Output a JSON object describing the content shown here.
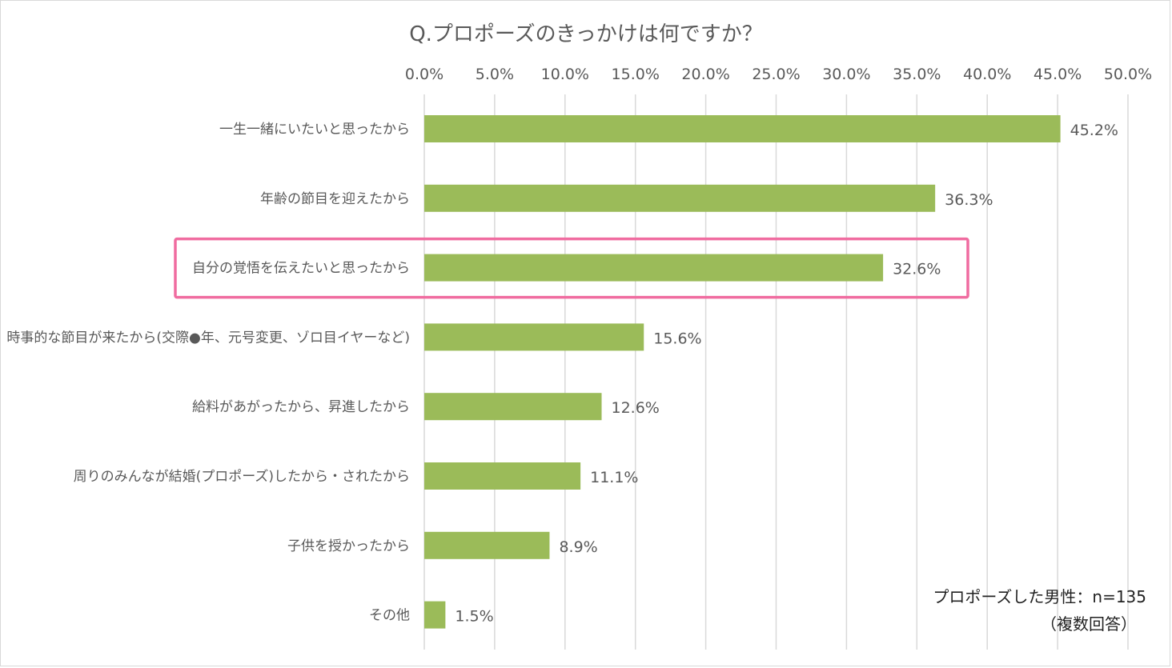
{
  "chart_data": {
    "type": "bar",
    "orientation": "horizontal",
    "title": "Q.プロポーズのきっかけは何ですか？",
    "categories": [
      "一生一緒にいたいと思ったから",
      "年齢の節目を迎えたから",
      "自分の覚悟を伝えたいと思ったから",
      "時事的な節目が来たから(交際●年、元号変更、ゾロ目イヤーなど)",
      "給料があがったから、昇進したから",
      "周りのみんなが結婚(プロポーズ)したから・されたから",
      "子供を授かったから",
      "その他"
    ],
    "values": [
      45.2,
      36.3,
      32.6,
      15.6,
      12.6,
      11.1,
      8.9,
      1.5
    ],
    "value_labels": [
      "45.2%",
      "36.3%",
      "32.6%",
      "15.6%",
      "12.6%",
      "11.1%",
      "8.9%",
      "1.5%"
    ],
    "xlim": [
      0,
      50
    ],
    "ticks": [
      0,
      5,
      10,
      15,
      20,
      25,
      30,
      35,
      40,
      45,
      50
    ],
    "tick_labels": [
      "0.0%",
      "5.0%",
      "10.0%",
      "15.0%",
      "20.0%",
      "25.0%",
      "30.0%",
      "35.0%",
      "40.0%",
      "45.0%",
      "50.0%"
    ],
    "axis_position": "top",
    "grid": true,
    "highlighted_category_index": 2,
    "colors": {
      "bar": "#9bbb59",
      "grid": "#d9d9d9",
      "highlight": "#f06ca0",
      "text": "#595959"
    }
  },
  "note": {
    "line1": "プロポーズした男性：n=135",
    "line2": "（複数回答）"
  }
}
